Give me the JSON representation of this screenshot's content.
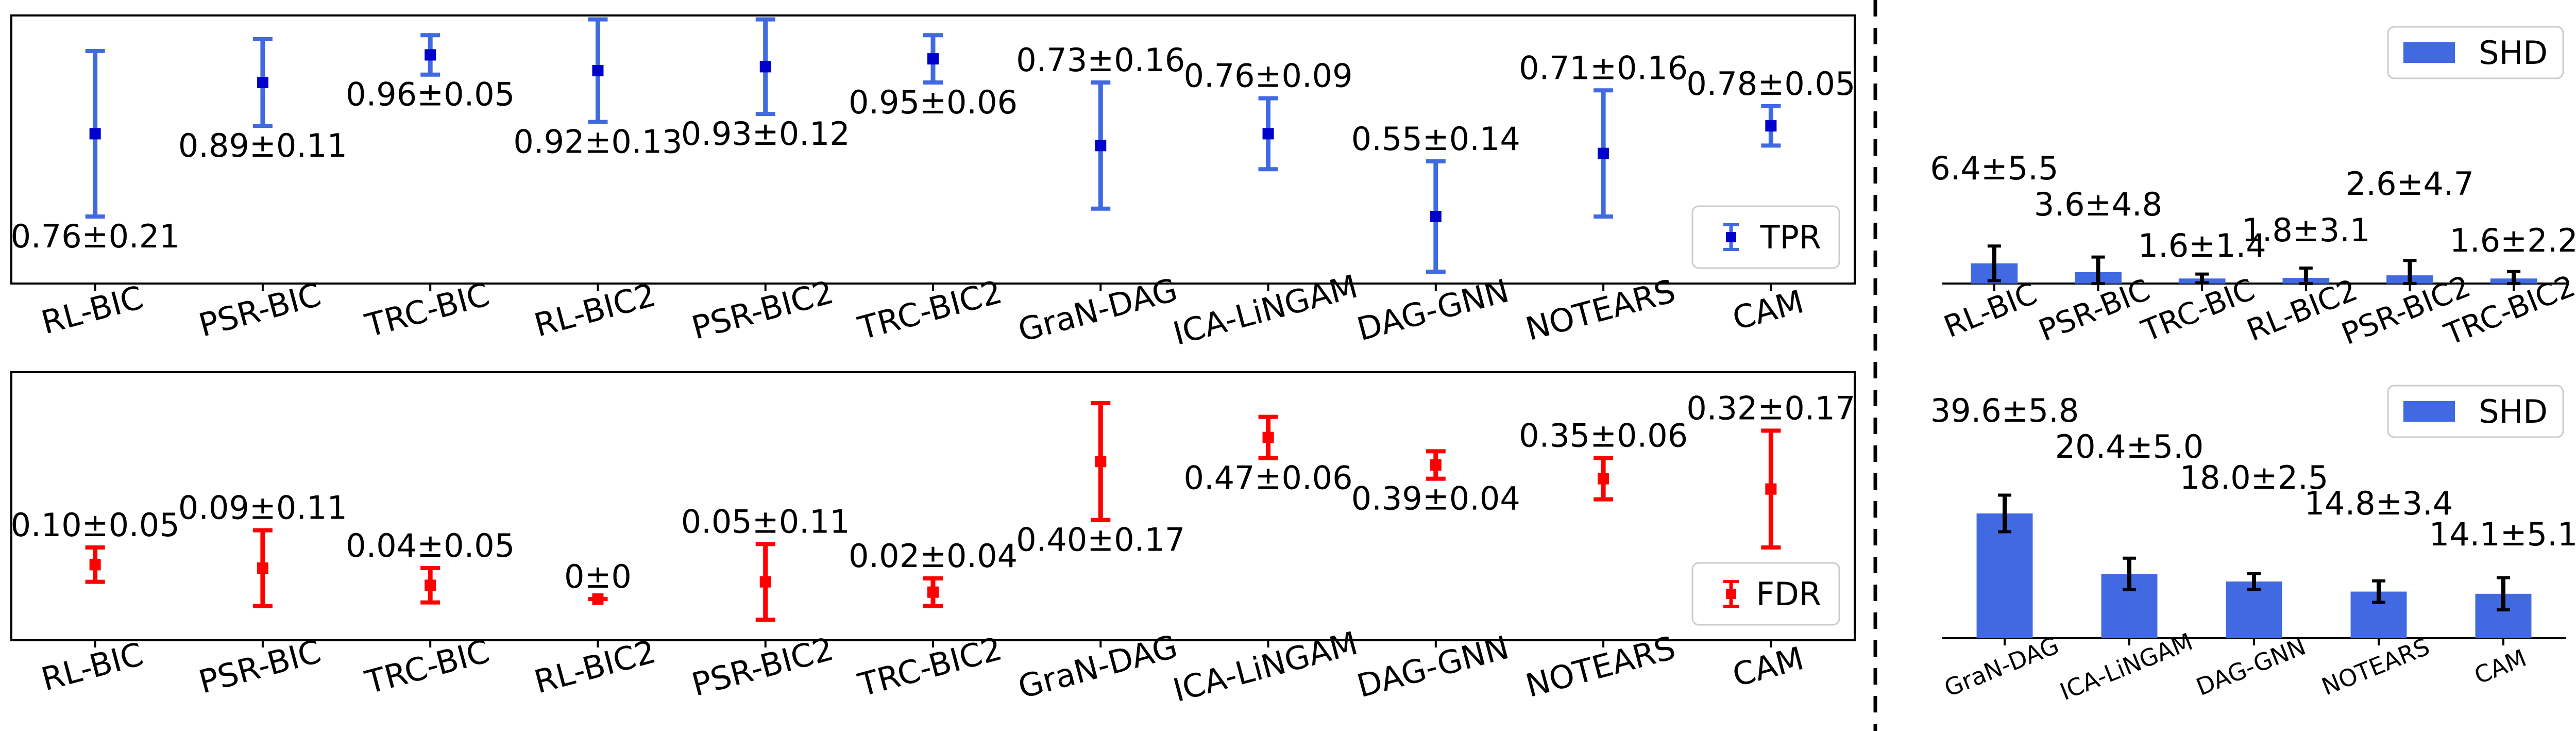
{
  "chart_data": [
    {
      "id": "tpr",
      "type": "errorbar",
      "title": "",
      "xlabel": "",
      "ylabel": "",
      "ylim": [
        0.38,
        1.06
      ],
      "legend": {
        "label": "TPR",
        "placement": "bottom-right"
      },
      "color": "#4169E1",
      "marker_color": "#0000CD",
      "categories": [
        "RL-BIC",
        "PSR-BIC",
        "TRC-BIC",
        "RL-BIC2",
        "PSR-BIC2",
        "TRC-BIC2",
        "GraN-DAG",
        "ICA-LiNGAM",
        "DAG-GNN",
        "NOTEARS",
        "CAM"
      ],
      "mean": [
        0.76,
        0.89,
        0.96,
        0.92,
        0.93,
        0.95,
        0.73,
        0.76,
        0.55,
        0.71,
        0.78
      ],
      "err": [
        0.21,
        0.11,
        0.05,
        0.13,
        0.12,
        0.06,
        0.16,
        0.09,
        0.14,
        0.16,
        0.05
      ],
      "labels": [
        "0.76±0.21",
        "0.89±0.11",
        "0.96±0.05",
        "0.92±0.13",
        "0.93±0.12",
        "0.95±0.06",
        "0.73±0.16",
        "0.76±0.09",
        "0.55±0.14",
        "0.71±0.16",
        "0.78±0.05"
      ],
      "label_side": [
        "below",
        "below",
        "below",
        "below",
        "below",
        "below",
        "above",
        "above",
        "above",
        "above",
        "above"
      ]
    },
    {
      "id": "fdr",
      "type": "errorbar",
      "title": "",
      "xlabel": "",
      "ylabel": "",
      "ylim": [
        -0.12,
        0.66
      ],
      "legend": {
        "label": "FDR",
        "placement": "bottom-right"
      },
      "color": "#FF0000",
      "marker_color": "#FF0000",
      "categories": [
        "RL-BIC",
        "PSR-BIC",
        "TRC-BIC",
        "RL-BIC2",
        "PSR-BIC2",
        "TRC-BIC2",
        "GraN-DAG",
        "ICA-LiNGAM",
        "DAG-GNN",
        "NOTEARS",
        "CAM"
      ],
      "mean": [
        0.1,
        0.09,
        0.04,
        0,
        0.05,
        0.02,
        0.4,
        0.47,
        0.39,
        0.35,
        0.32
      ],
      "err": [
        0.05,
        0.11,
        0.05,
        0,
        0.11,
        0.04,
        0.17,
        0.06,
        0.04,
        0.06,
        0.17
      ],
      "labels": [
        "0.10±0.05",
        "0.09±0.11",
        "0.04±0.05",
        "0±0",
        "0.05±0.11",
        "0.02±0.04",
        "0.40±0.17",
        "0.47±0.06",
        "0.39±0.04",
        "0.35±0.06",
        "0.32±0.17"
      ],
      "label_side": [
        "above",
        "above",
        "above",
        "above",
        "above",
        "above",
        "below",
        "below",
        "below",
        "above",
        "above"
      ]
    },
    {
      "id": "shd_top",
      "type": "bar",
      "title": "",
      "xlabel": "",
      "ylabel": "",
      "ylim": [
        0,
        63
      ],
      "legend": {
        "label": "SHD",
        "placement": "top-right"
      },
      "color": "#4169E1",
      "categories": [
        "RL-BIC",
        "PSR-BIC",
        "TRC-BIC",
        "RL-BIC2",
        "PSR-BIC2",
        "TRC-BIC2"
      ],
      "values": [
        6.4,
        3.6,
        1.6,
        1.8,
        2.6,
        1.6
      ],
      "err": [
        5.5,
        4.8,
        1.4,
        3.1,
        4.7,
        2.2
      ],
      "labels": [
        "6.4±5.5",
        "3.6±4.8",
        "1.6±1.4",
        "1.8±3.1",
        "2.6±4.7",
        "1.6±2.2"
      ]
    },
    {
      "id": "shd_bottom",
      "type": "bar",
      "title": "",
      "xlabel": "",
      "ylabel": "",
      "ylim": [
        0,
        63
      ],
      "legend": {
        "label": "SHD",
        "placement": "top-right"
      },
      "color": "#4169E1",
      "categories": [
        "GraN-DAG",
        "ICA-LiNGAM",
        "DAG-GNN",
        "NOTEARS",
        "CAM"
      ],
      "values": [
        39.6,
        20.4,
        18.0,
        14.8,
        14.1
      ],
      "err": [
        5.8,
        5.0,
        2.5,
        3.4,
        5.1
      ],
      "labels": [
        "39.6±5.8",
        "20.4±5.0",
        "18.0±2.5",
        "14.8±3.4",
        "14.1±5.1"
      ]
    }
  ]
}
